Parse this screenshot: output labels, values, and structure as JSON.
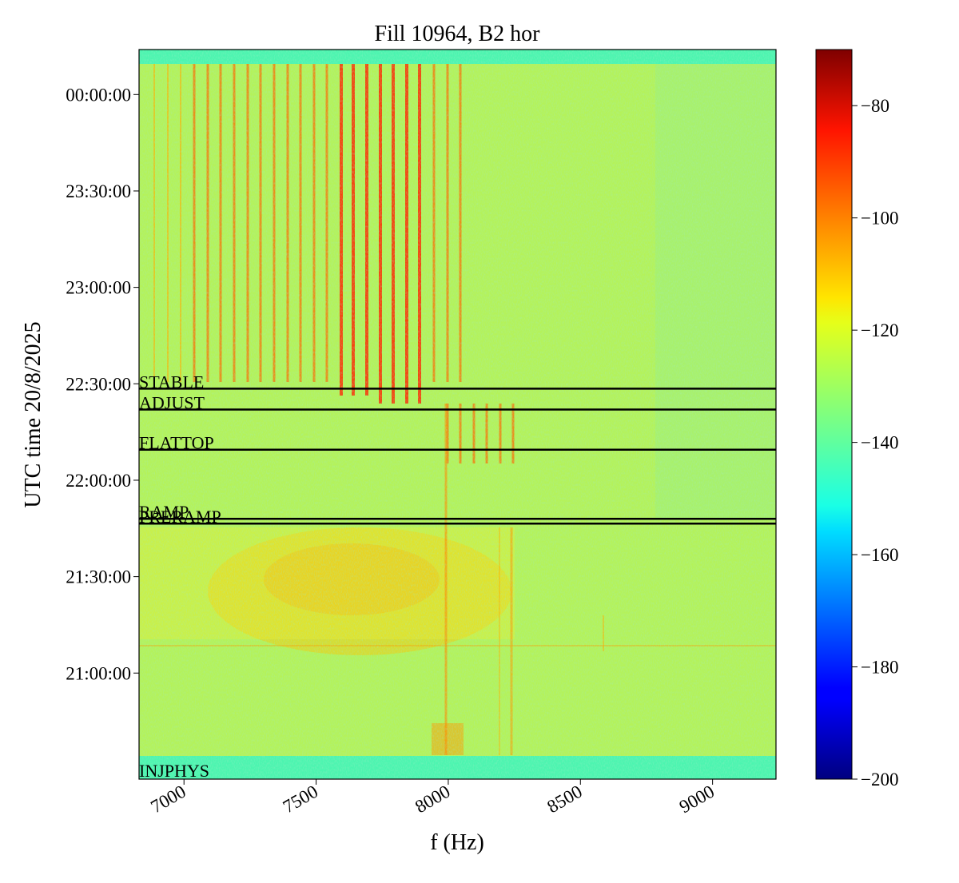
{
  "chart_data": {
    "type": "heatmap",
    "title": "Fill 10964, B2 hor",
    "xlabel": "f (Hz)",
    "ylabel": "UTC time 20/8/2025",
    "xlim": [
      6830,
      9240
    ],
    "x_ticks": [
      {
        "value": 7000,
        "label": "7000"
      },
      {
        "value": 7500,
        "label": "7500"
      },
      {
        "value": 8000,
        "label": "8000"
      },
      {
        "value": 8500,
        "label": "8500"
      },
      {
        "value": 9000,
        "label": "9000"
      }
    ],
    "y_range_time": [
      "20:27:00",
      "00:14:00"
    ],
    "y_ticks": [
      {
        "time": "00:00:00",
        "label": "00:00:00"
      },
      {
        "time": "23:30:00",
        "label": "23:30:00"
      },
      {
        "time": "23:00:00",
        "label": "23:00:00"
      },
      {
        "time": "22:30:00",
        "label": "22:30:00"
      },
      {
        "time": "22:00:00",
        "label": "22:00:00"
      },
      {
        "time": "21:30:00",
        "label": "21:30:00"
      },
      {
        "time": "21:00:00",
        "label": "21:00:00"
      }
    ],
    "colorbar": {
      "colormap": "jet",
      "range": [
        -200,
        -70
      ],
      "ticks": [
        {
          "value": -80,
          "label": "−80"
        },
        {
          "value": -100,
          "label": "−100"
        },
        {
          "value": -120,
          "label": "−120"
        },
        {
          "value": -140,
          "label": "−140"
        },
        {
          "value": -160,
          "label": "−160"
        },
        {
          "value": -180,
          "label": "−180"
        },
        {
          "value": -200,
          "label": "−200"
        }
      ]
    },
    "phases": [
      {
        "label": "STABLE",
        "time": "22:28:30"
      },
      {
        "label": "ADJUST",
        "time": "22:22:00"
      },
      {
        "label": "FLATTOP",
        "time": "22:09:30"
      },
      {
        "label": "RAMP",
        "time": "21:48:00"
      },
      {
        "label": "PRERAMP",
        "time": "21:46:30"
      },
      {
        "label": "INJPHYS",
        "time": "20:27:30"
      }
    ],
    "grid": false
  }
}
